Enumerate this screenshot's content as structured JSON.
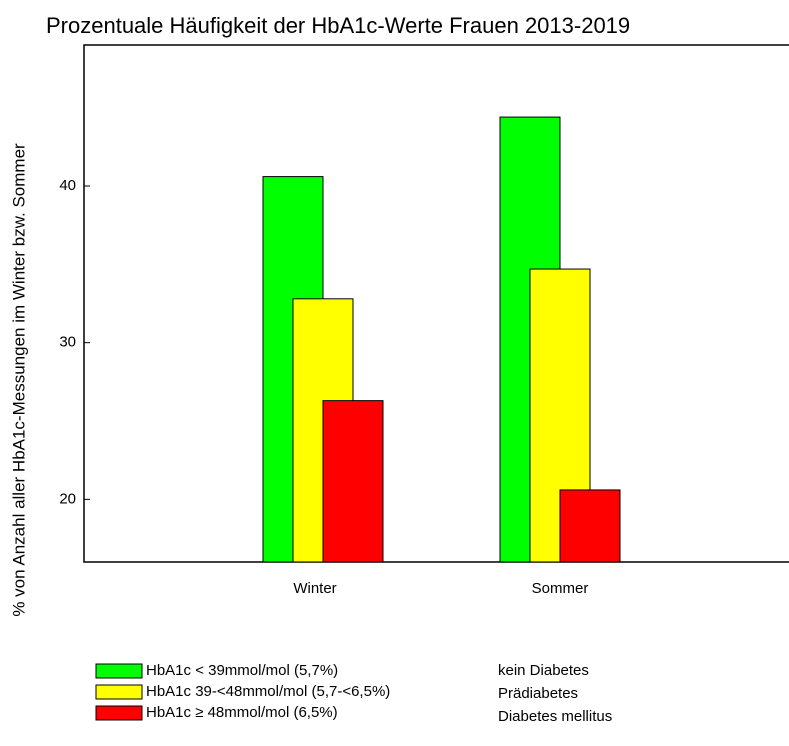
{
  "chart_data": {
    "type": "bar",
    "title": "Prozentuale Häufigkeit der HbA1c-Werte Frauen 2013-2019",
    "y_label": "% von Anzahl aller HbA1c-Messungen im Winter bzw. Sommer",
    "categories": [
      "Winter",
      "Sommer"
    ],
    "series": [
      {
        "name": "HbA1c < 39mmol/mol (5,7%)",
        "color": "#00ff00",
        "values": [
          40.6,
          44.4
        ]
      },
      {
        "name": "HbA1c 39-<48mmol/mol (5,7-<6,5%)",
        "color": "#ffff00",
        "values": [
          32.8,
          34.7
        ]
      },
      {
        "name": "HbA1c ≥ 48mmol/mol (6,5%)",
        "color": "#ff0000",
        "values": [
          26.3,
          20.6
        ]
      }
    ],
    "legend_notes": [
      "kein Diabetes",
      "Prädiabetes",
      "Diabetes mellitus"
    ],
    "ylim": [
      16,
      49
    ],
    "yticks": [
      20,
      30,
      40
    ],
    "grid": false
  }
}
